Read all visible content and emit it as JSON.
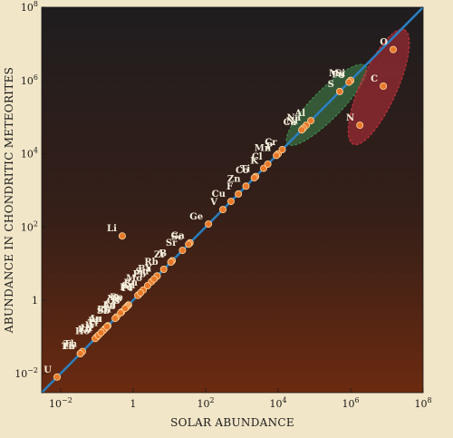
{
  "chart_data": {
    "type": "scatter",
    "x_scale": "log",
    "y_scale": "log",
    "xlim": [
      0.003,
      100000000
    ],
    "ylim": [
      0.003,
      100000000
    ],
    "xlabel": "SOLAR ABUNDANCE",
    "ylabel": "ABUNDANCE IN CHONDRITIC METEORITES",
    "x_ticks": [
      {
        "value": 0.01,
        "base": "10",
        "exp": "−2"
      },
      {
        "value": 1,
        "base": "1",
        "exp": ""
      },
      {
        "value": 100,
        "base": "10",
        "exp": "2"
      },
      {
        "value": 10000,
        "base": "10",
        "exp": "4"
      },
      {
        "value": 1000000,
        "base": "10",
        "exp": "6"
      },
      {
        "value": 100000000,
        "base": "10",
        "exp": "8"
      }
    ],
    "y_ticks": [
      {
        "value": 0.01,
        "base": "10",
        "exp": "−2"
      },
      {
        "value": 1,
        "base": "1",
        "exp": ""
      },
      {
        "value": 100,
        "base": "10",
        "exp": "2"
      },
      {
        "value": 10000,
        "base": "10",
        "exp": "4"
      },
      {
        "value": 1000000,
        "base": "10",
        "exp": "6"
      },
      {
        "value": 100000000,
        "base": "10",
        "exp": "8"
      }
    ],
    "reference_line": {
      "label": "",
      "slope": 1,
      "color": "#2a7fc0"
    },
    "groups": [
      {
        "color": "#3f8a4e",
        "members": [
          "Si",
          "Mg",
          "S",
          "Fe",
          "Na",
          "Ni",
          "Al",
          "Ca"
        ]
      },
      {
        "color": "#c0303a",
        "members": [
          "O",
          "C",
          "N"
        ]
      }
    ],
    "colors": {
      "marker": "#e8792a",
      "marker_edge": "#ffd9a0",
      "label": "#f4efdc"
    },
    "points": [
      {
        "label": "O",
        "x": 15000000,
        "y": 7000000
      },
      {
        "label": "C",
        "x": 8000000,
        "y": 700000
      },
      {
        "label": "N",
        "x": 1800000,
        "y": 60000
      },
      {
        "label": "Si",
        "x": 1000000,
        "y": 1000000
      },
      {
        "label": "Mg",
        "x": 1000000,
        "y": 1000000
      },
      {
        "label": "S",
        "x": 500000,
        "y": 500000
      },
      {
        "label": "Fe",
        "x": 900000,
        "y": 900000
      },
      {
        "label": "Na",
        "x": 60000,
        "y": 60000
      },
      {
        "label": "Ni",
        "x": 50000,
        "y": 50000
      },
      {
        "label": "Al",
        "x": 80000,
        "y": 80000
      },
      {
        "label": "Ca",
        "x": 45000,
        "y": 45000
      },
      {
        "label": "P",
        "x": 10000,
        "y": 10000
      },
      {
        "label": "Mn",
        "x": 9000,
        "y": 9000
      },
      {
        "label": "K",
        "x": 4000,
        "y": 4000
      },
      {
        "label": "Cr",
        "x": 13000,
        "y": 13000
      },
      {
        "label": "Cl",
        "x": 5200,
        "y": 5200
      },
      {
        "label": "Zn",
        "x": 1300,
        "y": 1300
      },
      {
        "label": "Ti",
        "x": 2400,
        "y": 2400
      },
      {
        "label": "Cu",
        "x": 500,
        "y": 500
      },
      {
        "label": "Co",
        "x": 2200,
        "y": 2200
      },
      {
        "label": "V",
        "x": 300,
        "y": 300
      },
      {
        "label": "F",
        "x": 800,
        "y": 800
      },
      {
        "label": "Ge",
        "x": 120,
        "y": 120
      },
      {
        "label": "Li",
        "x": 0.5,
        "y": 57
      },
      {
        "label": "Ga",
        "x": 37,
        "y": 37
      },
      {
        "label": "B",
        "x": 12,
        "y": 12
      },
      {
        "label": "Sc",
        "x": 34,
        "y": 34
      },
      {
        "label": "Zr",
        "x": 11,
        "y": 11
      },
      {
        "label": "Sr",
        "x": 23,
        "y": 23
      },
      {
        "label": "Ba",
        "x": 4.5,
        "y": 4.5
      },
      {
        "label": "Pb",
        "x": 3.2,
        "y": 3.2
      },
      {
        "label": "Rb",
        "x": 7,
        "y": 7
      },
      {
        "label": "Pd",
        "x": 1.4,
        "y": 1.4
      },
      {
        "label": "Ru",
        "x": 1.9,
        "y": 1.9
      },
      {
        "label": "Be",
        "x": 0.75,
        "y": 0.75
      },
      {
        "label": "Nb",
        "x": 0.7,
        "y": 0.7
      },
      {
        "label": "Y",
        "x": 4.6,
        "y": 4.6
      },
      {
        "label": "Rh",
        "x": 0.35,
        "y": 0.35
      },
      {
        "label": "Ir",
        "x": 0.65,
        "y": 0.65
      },
      {
        "label": "Sn",
        "x": 3.8,
        "y": 3.8
      },
      {
        "label": "Ag",
        "x": 0.48,
        "y": 0.48
      },
      {
        "label": "Pt",
        "x": 1.35,
        "y": 1.35
      },
      {
        "label": "Mo",
        "x": 2.5,
        "y": 2.5
      },
      {
        "label": "Cd",
        "x": 1.6,
        "y": 1.6
      },
      {
        "label": "Pr",
        "x": 0.17,
        "y": 0.17
      },
      {
        "label": "Sb",
        "x": 0.32,
        "y": 0.32
      },
      {
        "label": "Eu",
        "x": 0.1,
        "y": 0.1
      },
      {
        "label": "La",
        "x": 0.45,
        "y": 0.45
      },
      {
        "label": "Os",
        "x": 0.6,
        "y": 0.6
      },
      {
        "label": "Au",
        "x": 0.2,
        "y": 0.2
      },
      {
        "label": "Ho",
        "x": 0.09,
        "y": 0.09
      },
      {
        "label": "Tb",
        "x": 0.035,
        "y": 0.035
      },
      {
        "label": "Ti",
        "x": 0.15,
        "y": 0.15
      },
      {
        "label": "Hf",
        "x": 0.11,
        "y": 0.11
      },
      {
        "label": "W",
        "x": 0.13,
        "y": 0.13
      },
      {
        "label": "In",
        "x": 0.19,
        "y": 0.19
      },
      {
        "label": "Th",
        "x": 0.04,
        "y": 0.04
      },
      {
        "label": "Lu",
        "x": 0.035,
        "y": 0.035
      },
      {
        "label": "U",
        "x": 0.008,
        "y": 0.008
      }
    ]
  }
}
